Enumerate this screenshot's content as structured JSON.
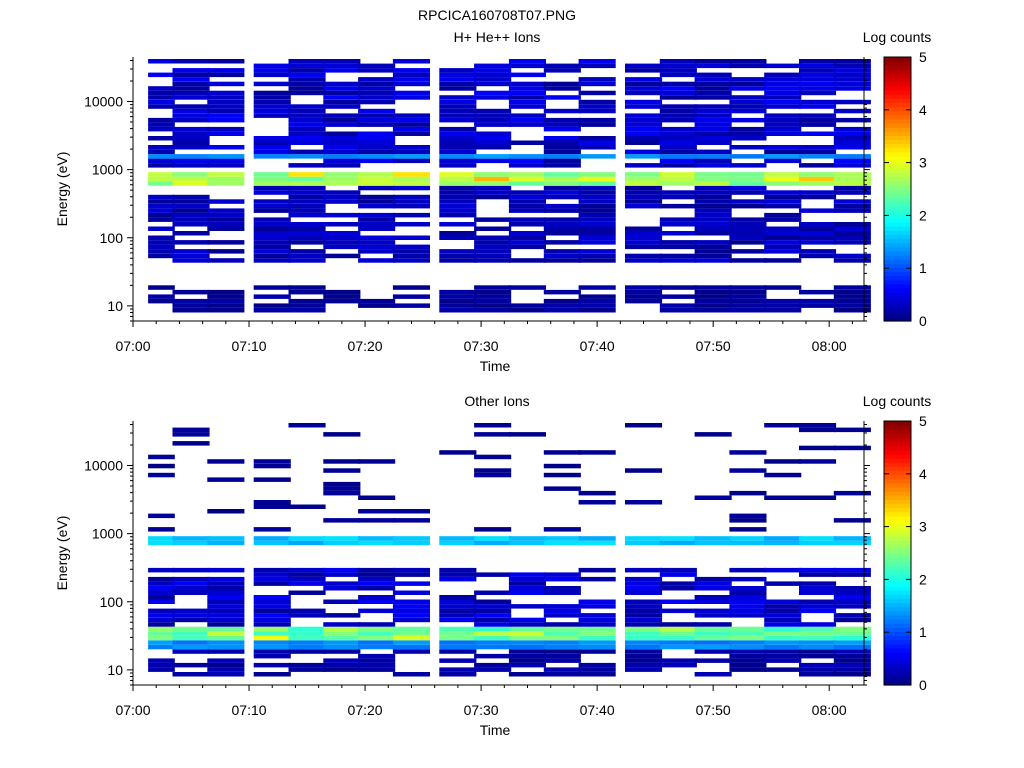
{
  "figure_title": "RPCICA160708T07.PNG",
  "chart_data": [
    {
      "type": "heatmap",
      "title": "H+ He++ Ions",
      "xlabel": "Time",
      "ylabel": "Energy (eV)",
      "colorbar_label": "Log counts",
      "x_ticks": [
        "07:00",
        "07:10",
        "07:20",
        "07:30",
        "07:40",
        "07:50",
        "08:00"
      ],
      "y_ticks": [
        "10",
        "100",
        "1000",
        "10000"
      ],
      "y_scale": "log",
      "xlim": [
        "07:00",
        "08:03"
      ],
      "ylim": [
        6,
        45000
      ],
      "colorbar_ticks": [
        "0",
        "1",
        "2",
        "3",
        "4",
        "5"
      ],
      "clim": [
        0,
        5
      ],
      "time_bins": [
        "07:02",
        "07:05",
        "07:08",
        "07:12",
        "07:15",
        "07:18",
        "07:21",
        "07:24",
        "07:28",
        "07:31",
        "07:34",
        "07:37",
        "07:40",
        "07:44",
        "07:47",
        "07:50",
        "07:53",
        "07:56",
        "07:59",
        "08:02"
      ],
      "bands": [
        {
          "emin": 600,
          "emax": 900,
          "log_counts": 2.6,
          "peak": 3.2,
          "note": "intense band near 700 eV"
        },
        {
          "emin": 1450,
          "emax": 1700,
          "log_counts": 1.3,
          "note": "enhancement 07:47–07:58"
        },
        {
          "emin": 1000,
          "emax": 40000,
          "log_counts": 0.4
        },
        {
          "emin": 40,
          "emax": 550,
          "log_counts": 0.3
        },
        {
          "emin": 8,
          "emax": 20,
          "log_counts": 0.15
        }
      ]
    },
    {
      "type": "heatmap",
      "title": "Other Ions",
      "xlabel": "Time",
      "ylabel": "Energy (eV)",
      "colorbar_label": "Log counts",
      "x_ticks": [
        "07:00",
        "07:10",
        "07:20",
        "07:30",
        "07:40",
        "07:50",
        "08:00"
      ],
      "y_ticks": [
        "10",
        "100",
        "1000",
        "10000"
      ],
      "y_scale": "log",
      "xlim": [
        "07:00",
        "08:03"
      ],
      "ylim": [
        6,
        45000
      ],
      "colorbar_ticks": [
        "0",
        "1",
        "2",
        "3",
        "4",
        "5"
      ],
      "clim": [
        0,
        5
      ],
      "time_bins": [
        "07:02",
        "07:05",
        "07:08",
        "07:12",
        "07:15",
        "07:18",
        "07:21",
        "07:24",
        "07:28",
        "07:31",
        "07:34",
        "07:37",
        "07:40",
        "07:44",
        "07:47",
        "07:50",
        "07:53",
        "07:56",
        "07:59",
        "08:02"
      ],
      "bands": [
        {
          "emin": 650,
          "emax": 880,
          "log_counts": 1.6,
          "note": "cyan band near 750 eV"
        },
        {
          "emin": 28,
          "emax": 40,
          "log_counts": 2.3,
          "peak": 2.8,
          "note": "green band near 33 eV"
        },
        {
          "emin": 20,
          "emax": 28,
          "log_counts": 1.3
        },
        {
          "emin": 45,
          "emax": 300,
          "log_counts": 0.4
        },
        {
          "emin": 1000,
          "emax": 40000,
          "log_counts": 0.1,
          "note": "sparse"
        },
        {
          "emin": 8,
          "emax": 20,
          "log_counts": 0.2
        }
      ]
    }
  ]
}
